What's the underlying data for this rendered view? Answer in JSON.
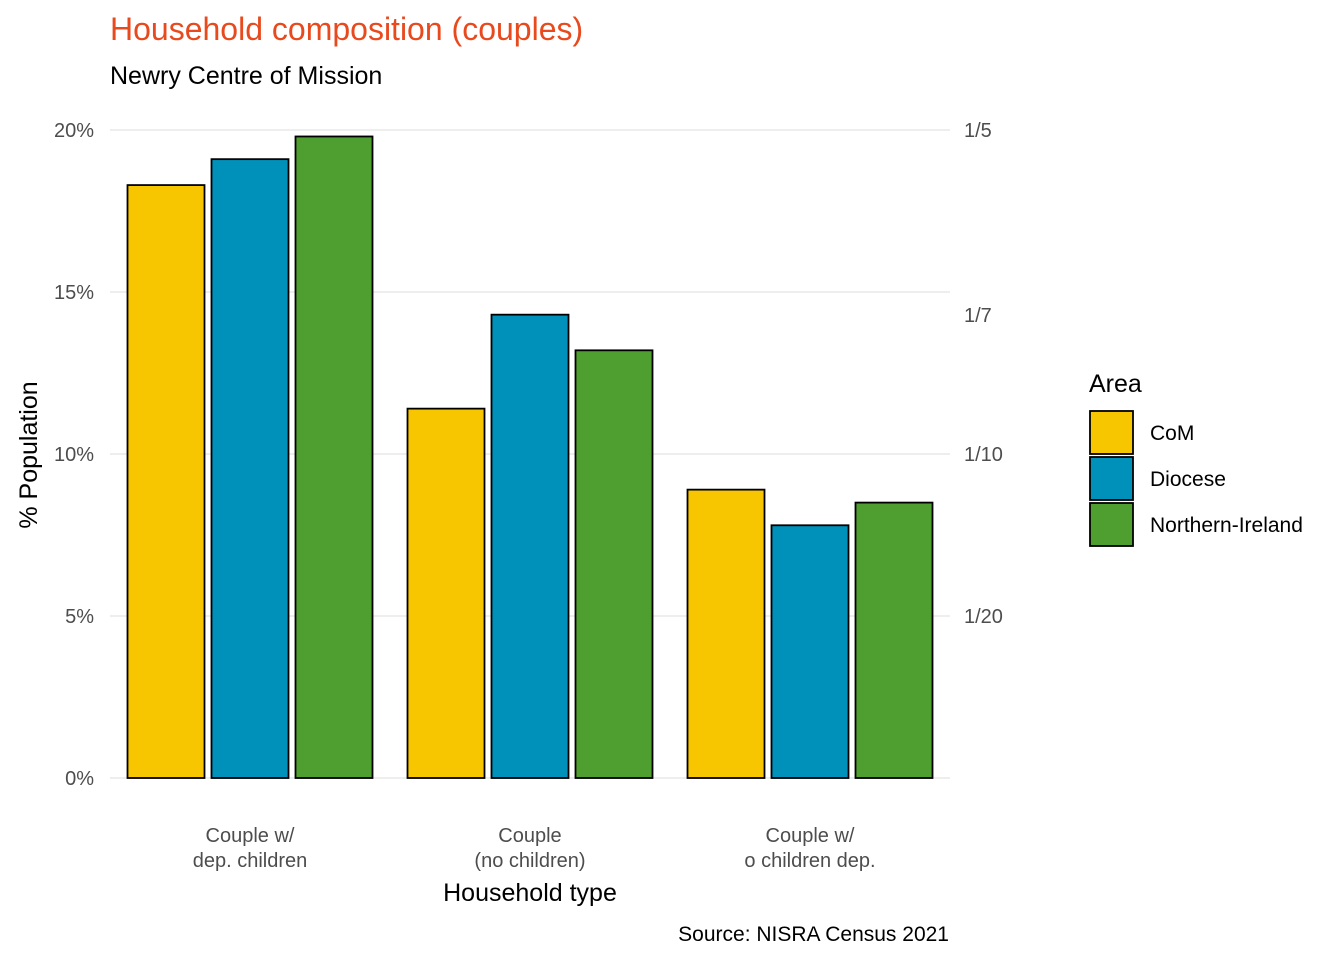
{
  "chart_data": {
    "type": "bar",
    "title": "Household composition (couples)",
    "subtitle": "Newry Centre of Mission",
    "xlabel": "Household type",
    "ylabel": "% Population",
    "caption": "Source: NISRA Census 2021",
    "categories": [
      [
        "Couple w/",
        "dep. children"
      ],
      [
        "Couple",
        "(no children)"
      ],
      [
        "Couple w/",
        "o children dep."
      ]
    ],
    "series": [
      {
        "name": "CoM",
        "color": "#f8c600",
        "values": [
          0.183,
          0.114,
          0.089
        ]
      },
      {
        "name": "Diocese",
        "color": "#0091bb",
        "values": [
          0.191,
          0.143,
          0.078
        ]
      },
      {
        "name": "Northern-Ireland",
        "color": "#4f9e30",
        "values": [
          0.198,
          0.132,
          0.085
        ]
      }
    ],
    "ylim": [
      0,
      0.2
    ],
    "y_ticks": [
      {
        "value": 0,
        "label": "0%"
      },
      {
        "value": 0.05,
        "label": "5%"
      },
      {
        "value": 0.1,
        "label": "10%"
      },
      {
        "value": 0.15,
        "label": "15%"
      },
      {
        "value": 0.2,
        "label": "20%"
      }
    ],
    "y2_ticks": [
      {
        "value": 0.05,
        "label": "1/20"
      },
      {
        "value": 0.1,
        "label": "1/10"
      },
      {
        "value": 0.142857,
        "label": "1/7"
      },
      {
        "value": 0.2,
        "label": "1/5"
      }
    ],
    "legend": {
      "title": "Area",
      "position": "right"
    },
    "grid": true
  }
}
